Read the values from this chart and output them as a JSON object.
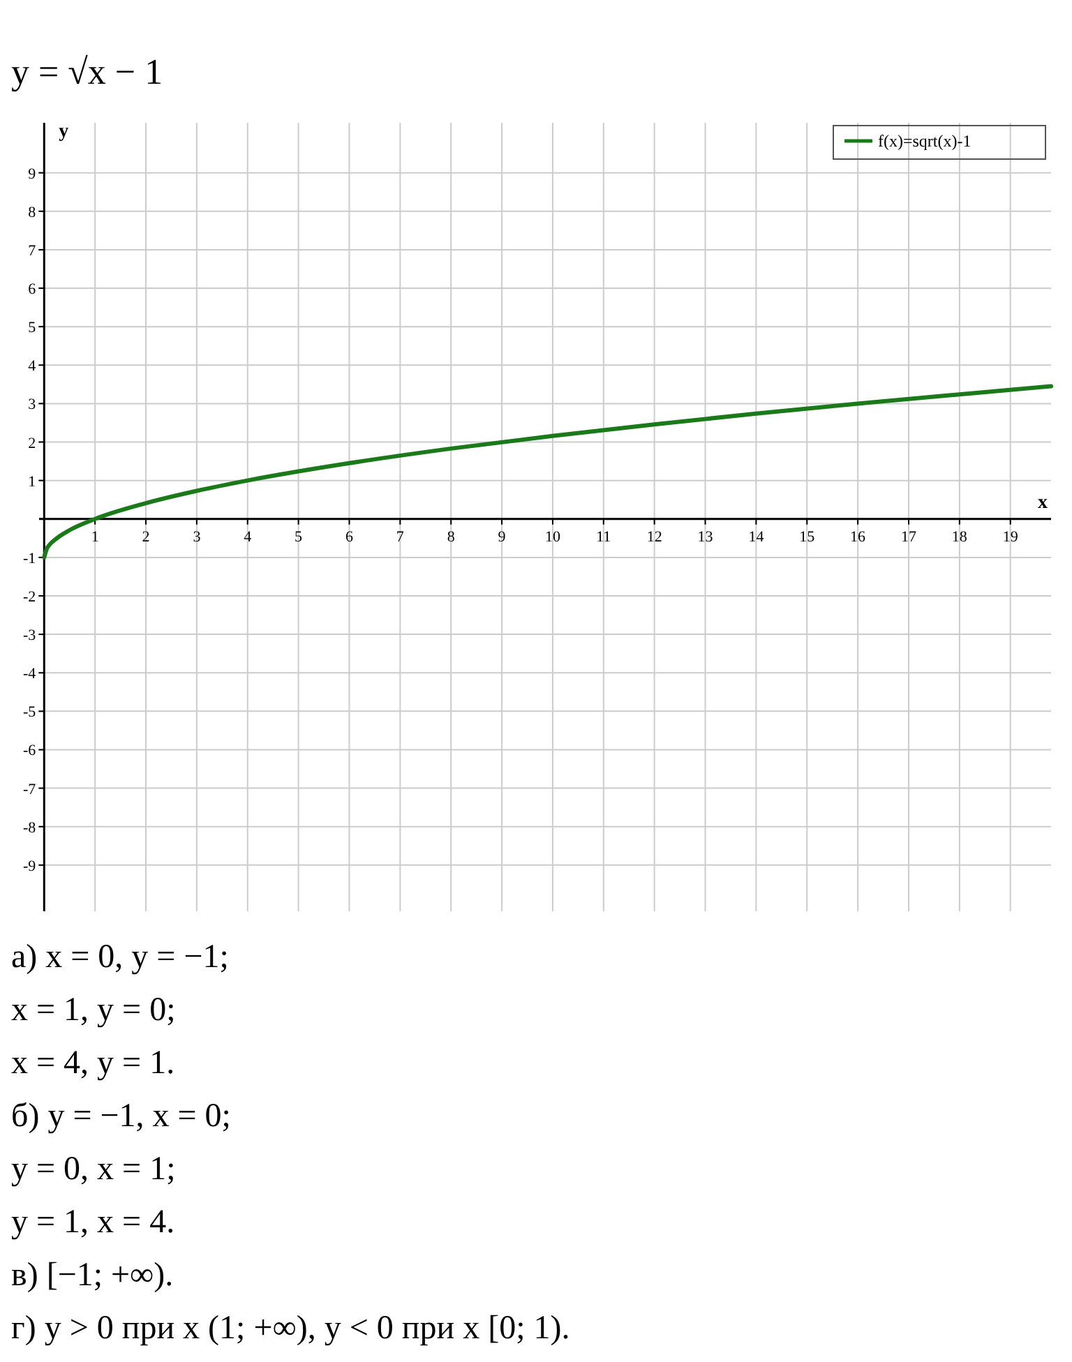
{
  "chart_data": {
    "type": "line",
    "title": "y = √x − 1",
    "xlabel": "x",
    "ylabel": "y",
    "xlim": [
      -0.1,
      19.8
    ],
    "ylim": [
      -10.2,
      10.3
    ],
    "xticks": [
      1,
      2,
      3,
      4,
      5,
      6,
      7,
      8,
      9,
      10,
      11,
      12,
      13,
      14,
      15,
      16,
      17,
      18,
      19
    ],
    "yticks": [
      -9,
      -8,
      -7,
      -6,
      -5,
      -4,
      -3,
      -2,
      -1,
      1,
      2,
      3,
      4,
      5,
      6,
      7,
      8,
      9
    ],
    "grid": true,
    "legend": "top right",
    "marker": "none",
    "line_style": "solid",
    "series": [
      {
        "name": "f(x)=sqrt(x)-1",
        "color": "#1a7a1a",
        "x": [
          0,
          0.05,
          0.1,
          0.25,
          0.5,
          1,
          2,
          3,
          4,
          6,
          8,
          10,
          12,
          14,
          16,
          18,
          19.8
        ],
        "values": [
          -1,
          -0.78,
          -0.68,
          -0.5,
          -0.29,
          0,
          0.41,
          0.73,
          1,
          1.45,
          1.83,
          2.16,
          2.46,
          2.74,
          3,
          3.24,
          3.45
        ]
      }
    ],
    "annotations": [
      "а) x = 0,     y = −1;",
      "x = 1,     y = 0;",
      "x = 4,     y = 1.",
      "б) y = −1,     x = 0;",
      "y = 0,     x = 1;",
      "y = 1,     x = 4.",
      "в) [−1; +∞).",
      "г) y > 0 при x (1; +∞),     y < 0 при x [0; 1)."
    ]
  }
}
